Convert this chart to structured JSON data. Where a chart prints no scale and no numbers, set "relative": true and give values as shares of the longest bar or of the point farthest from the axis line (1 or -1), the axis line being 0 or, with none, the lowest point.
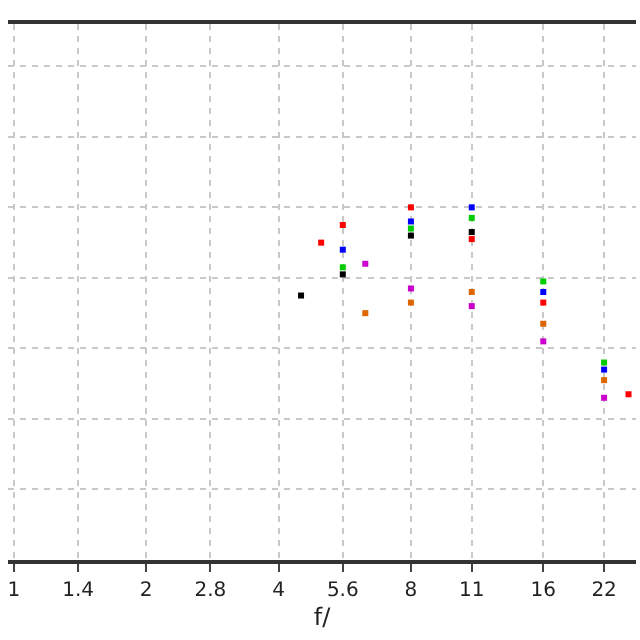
{
  "chart_data": {
    "type": "scatter",
    "relative": true,
    "xlabel": "f/",
    "log": "x",
    "grid": true,
    "marker": "square",
    "xlim": [
      0.97,
      26
    ],
    "xticks": [
      1,
      1.4,
      2,
      2.8,
      4,
      5.6,
      8,
      11,
      16,
      22
    ],
    "series": [
      {
        "color": "#ff0000",
        "x": [
          5.0,
          5.6,
          8,
          11,
          16,
          25
        ],
        "values": [
          0.9,
          0.95,
          1.0,
          0.91,
          0.73,
          0.47
        ]
      },
      {
        "color": "#0000ff",
        "x": [
          5.6,
          8,
          11,
          16,
          22
        ],
        "values": [
          0.88,
          0.96,
          1.0,
          0.76,
          0.54
        ]
      },
      {
        "color": "#00cc00",
        "x": [
          5.6,
          8,
          11,
          16,
          22
        ],
        "values": [
          0.83,
          0.94,
          0.97,
          0.79,
          0.56
        ]
      },
      {
        "color": "#000000",
        "x": [
          4.5,
          5.6,
          8,
          11
        ],
        "values": [
          0.75,
          0.81,
          0.92,
          0.93
        ]
      },
      {
        "color": "#cc00cc",
        "x": [
          6.3,
          8,
          11,
          16,
          22
        ],
        "values": [
          0.84,
          0.77,
          0.72,
          0.62,
          0.46
        ]
      },
      {
        "color": "#dd6600",
        "x": [
          6.3,
          8,
          11,
          16,
          22
        ],
        "values": [
          0.7,
          0.73,
          0.76,
          0.67,
          0.51
        ]
      }
    ]
  }
}
